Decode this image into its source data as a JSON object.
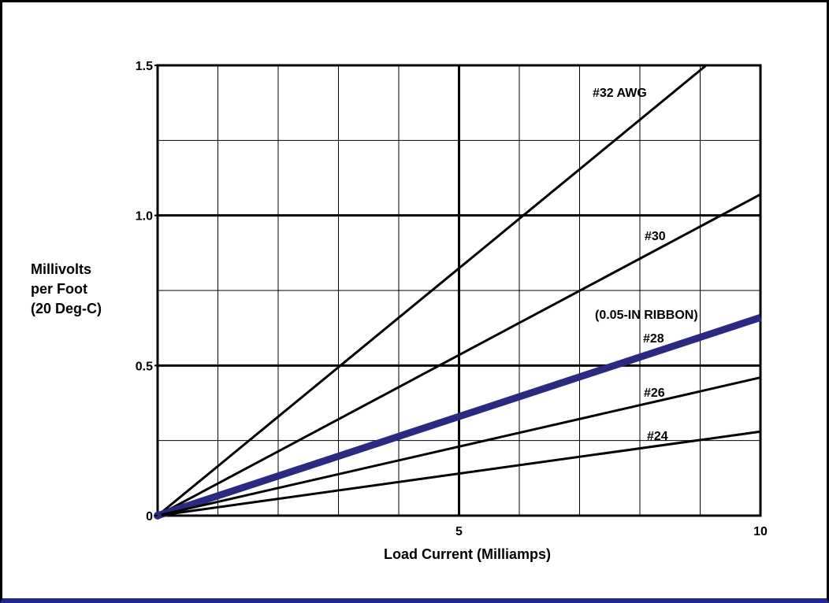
{
  "chart_data": {
    "type": "line",
    "title": "",
    "xlabel": "Load Current (Milliamps)",
    "ylabel_lines": [
      "Millivolts",
      "per Foot",
      "(20 Deg-C)"
    ],
    "xlim": [
      0,
      10
    ],
    "ylim": [
      0,
      1.5
    ],
    "x_tick_labels": [
      {
        "value": 5,
        "label": "5"
      },
      {
        "value": 10,
        "label": "10"
      }
    ],
    "y_tick_labels": [
      {
        "value": 0,
        "label": "0"
      },
      {
        "value": 0.5,
        "label": "0.5"
      },
      {
        "value": 1.0,
        "label": "1.0"
      },
      {
        "value": 1.5,
        "label": "1.5"
      }
    ],
    "grid": true,
    "series": [
      {
        "label": "#32 AWG",
        "x": [
          0,
          9.1
        ],
        "y": [
          0,
          1.5
        ],
        "color": "#000000",
        "emphasis": false
      },
      {
        "label": "#30",
        "x": [
          0,
          10
        ],
        "y": [
          0,
          1.07
        ],
        "color": "#000000",
        "emphasis": false
      },
      {
        "label": "#28",
        "note": "(0.05-IN RIBBON)",
        "x": [
          0,
          10
        ],
        "y": [
          0,
          0.66
        ],
        "color": "#2b2a80",
        "emphasis": true
      },
      {
        "label": "#26",
        "x": [
          0,
          10
        ],
        "y": [
          0,
          0.46
        ],
        "color": "#000000",
        "emphasis": false
      },
      {
        "label": "#24",
        "x": [
          0,
          10
        ],
        "y": [
          0,
          0.28
        ],
        "color": "#000000",
        "emphasis": false
      }
    ]
  }
}
